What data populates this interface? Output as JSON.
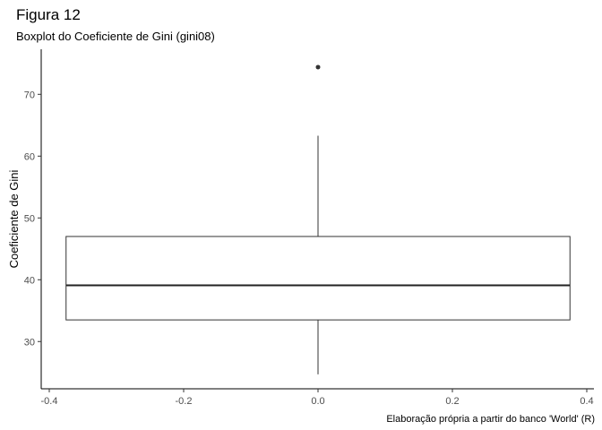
{
  "chart_data": {
    "type": "boxplot",
    "title": "Figura 12",
    "subtitle": "Boxplot do Coeficiente de Gini (gini08)",
    "xlabel": "",
    "ylabel": "Coeficiente de Gini",
    "caption": "Elaboração própria a partir do banco 'World' (R)",
    "xlim": [
      -0.4,
      0.4
    ],
    "ylim": [
      22.5,
      77
    ],
    "x_ticks": [
      -0.4,
      -0.2,
      0.0,
      0.2,
      0.4
    ],
    "x_tick_labels": [
      "-0.4",
      "-0.2",
      "0.0",
      "0.2",
      "0.4"
    ],
    "y_ticks": [
      30,
      40,
      50,
      60,
      70
    ],
    "y_tick_labels": [
      "30",
      "40",
      "50",
      "60",
      "70"
    ],
    "grid": false,
    "box": {
      "x_center": 0.0,
      "x_left": -0.375,
      "x_right": 0.375,
      "whisker_low": 24.7,
      "q1": 33.5,
      "median": 39.1,
      "q3": 47.0,
      "whisker_high": 63.3,
      "outliers": [
        74.4
      ]
    }
  }
}
